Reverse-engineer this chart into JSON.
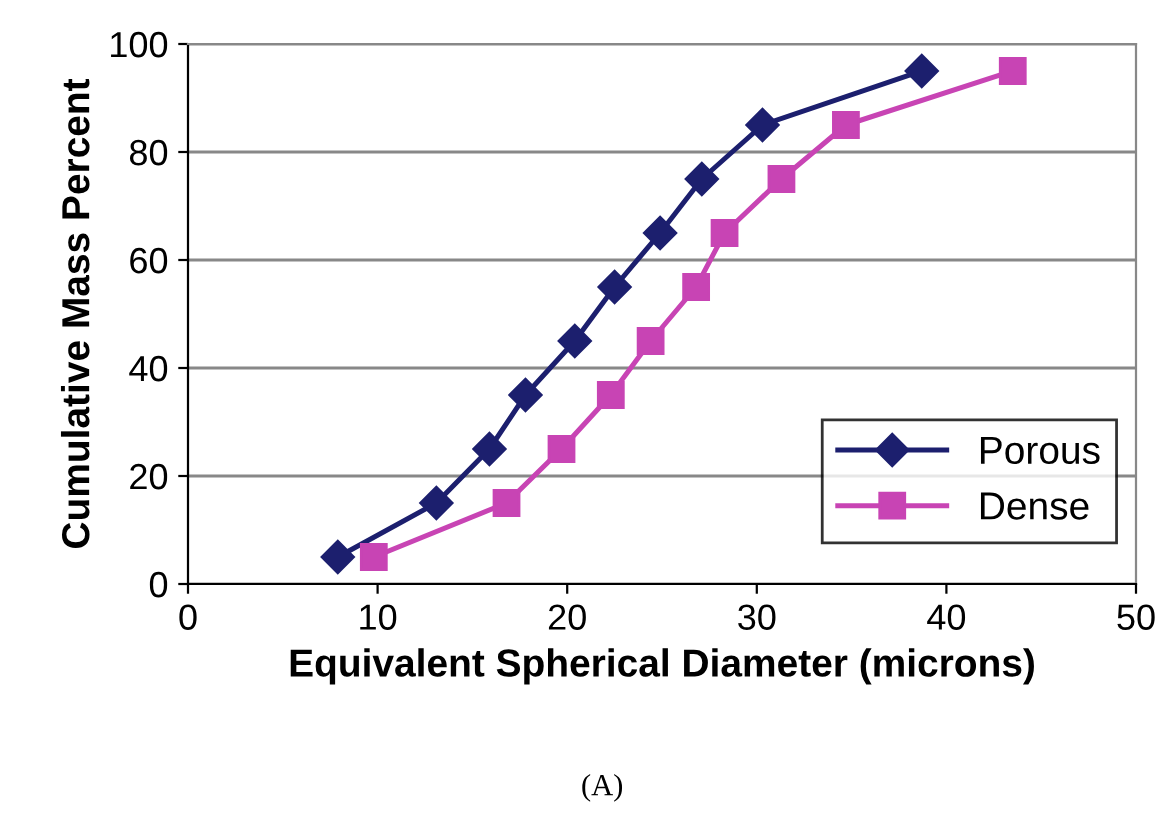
{
  "chart_data": {
    "type": "line",
    "xlabel": "Equivalent Spherical Diameter (microns)",
    "ylabel": "Cumulative Mass Percent",
    "xlim": [
      0,
      50
    ],
    "xticks": [
      0,
      10,
      20,
      30,
      40,
      50
    ],
    "ylim": [
      0,
      100
    ],
    "yticks": [
      0,
      20,
      40,
      60,
      80,
      100
    ],
    "grid": "y",
    "legend": "bottom right",
    "series": [
      {
        "name": "Porous",
        "color": "#1c1f6e",
        "marker": "diamond",
        "x": [
          7.9,
          13.1,
          15.9,
          17.8,
          20.4,
          22.5,
          24.9,
          27.1,
          30.3,
          38.7
        ],
        "values": [
          5,
          15,
          25,
          35,
          45,
          55,
          65,
          75,
          85,
          95
        ]
      },
      {
        "name": "Dense",
        "color": "#c844b4",
        "marker": "square",
        "x": [
          9.8,
          16.8,
          19.7,
          22.3,
          24.4,
          26.8,
          28.3,
          31.3,
          34.7,
          43.5
        ],
        "values": [
          5,
          15,
          25,
          35,
          45,
          55,
          65,
          75,
          85,
          95
        ]
      }
    ],
    "annotations": [
      "(A)"
    ]
  }
}
